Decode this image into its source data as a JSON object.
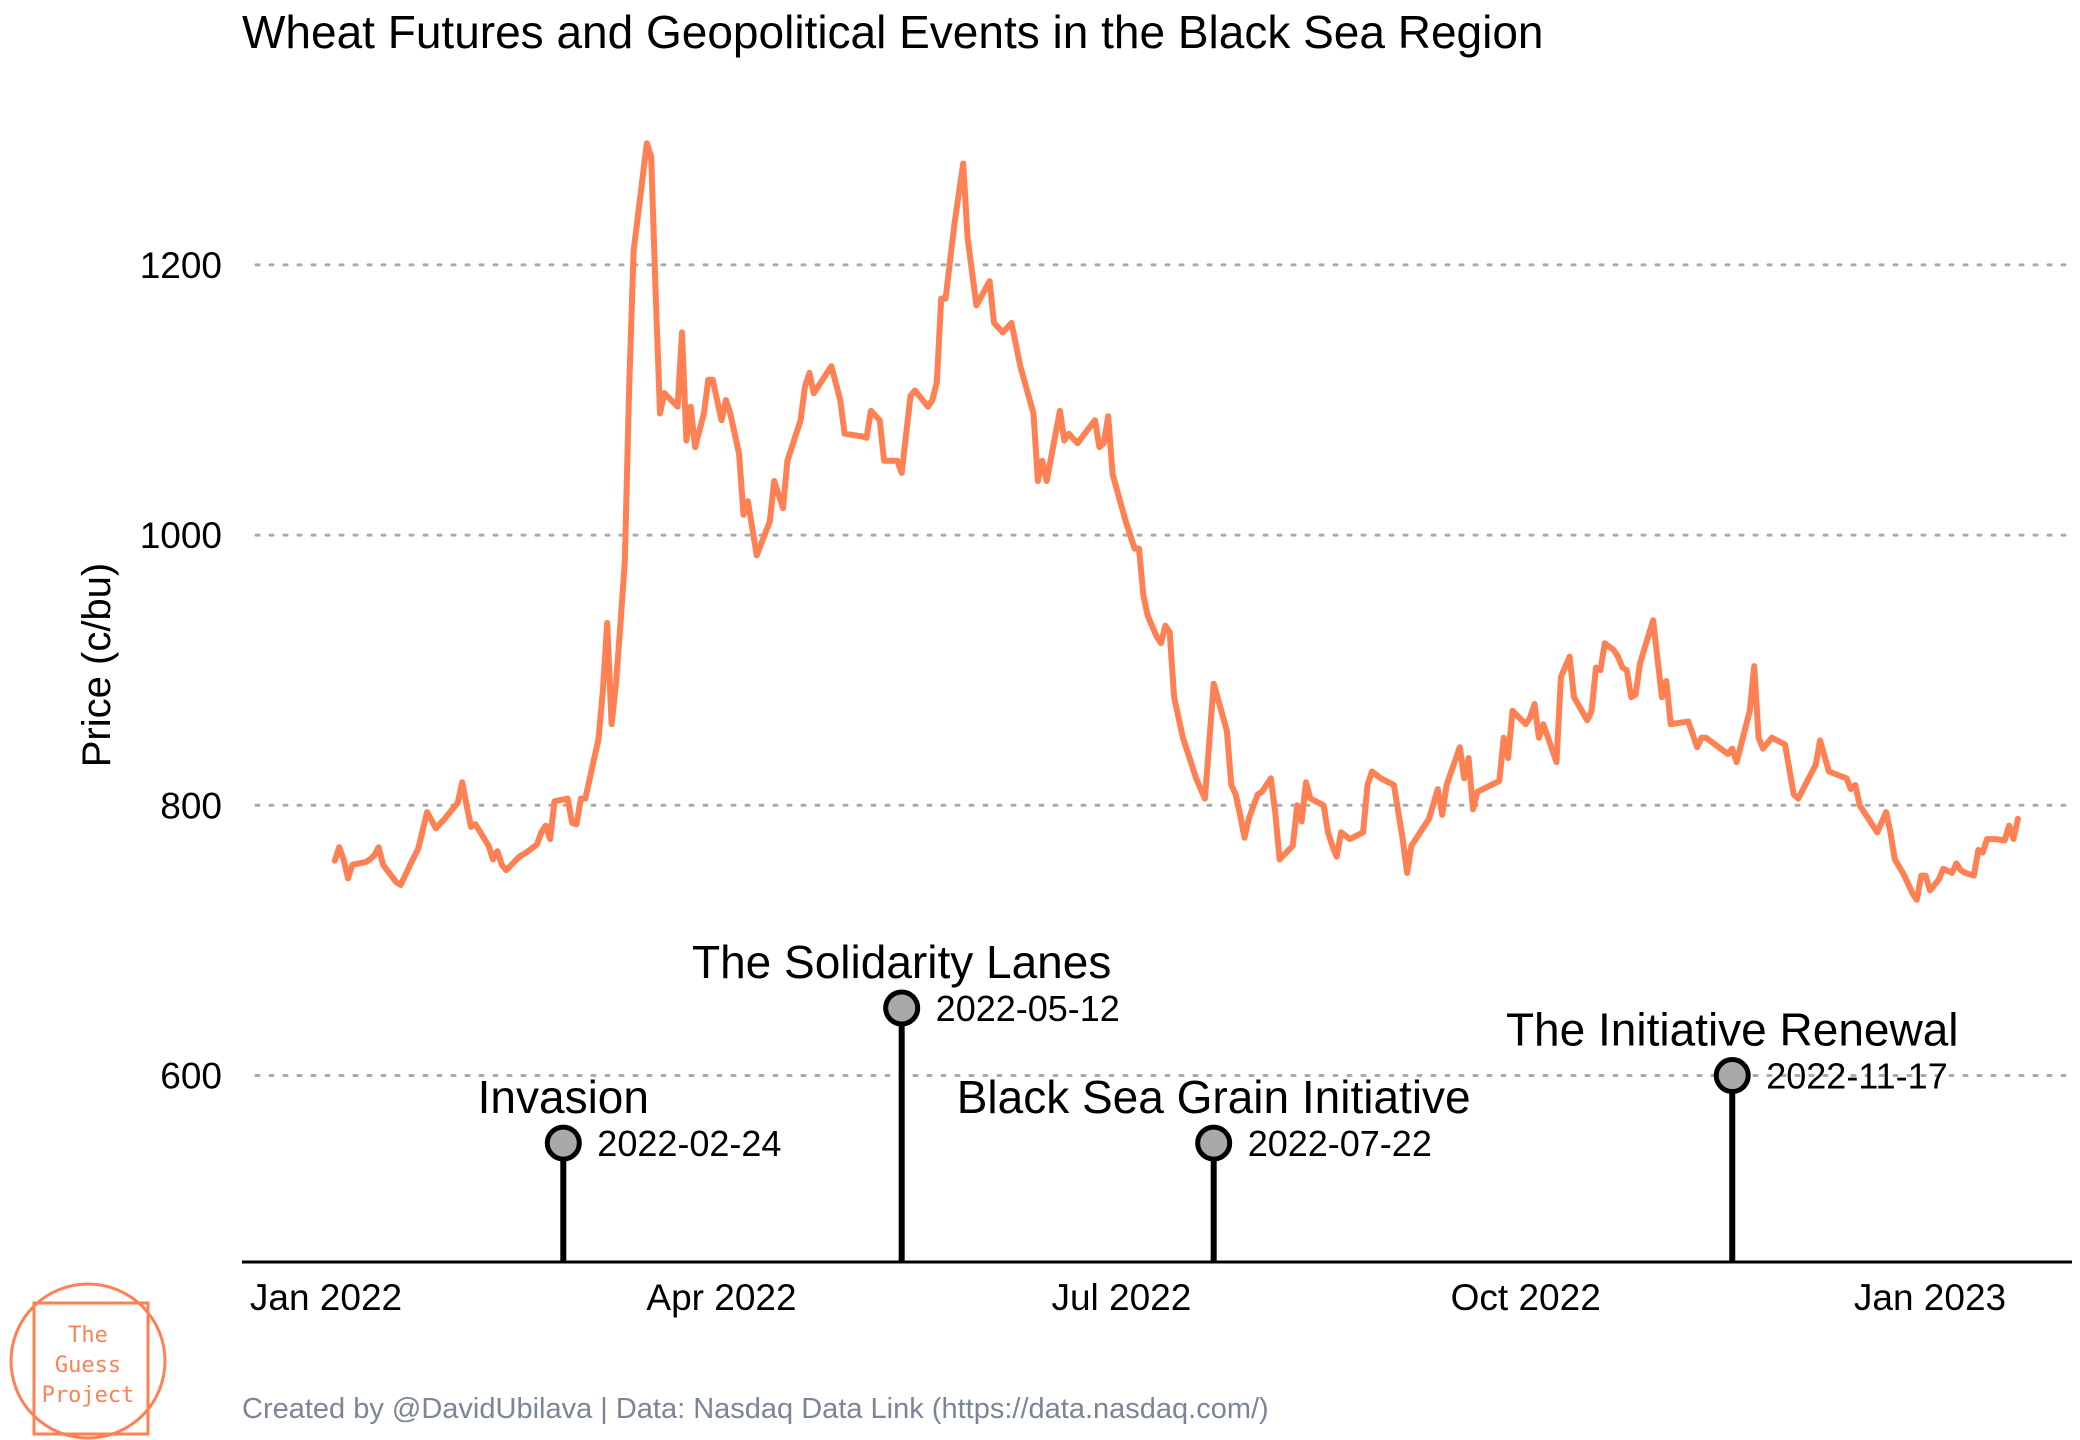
{
  "colors": {
    "line": "#ff8052",
    "grid": "#aaaaaa",
    "marker_fill": "#a9a9a9",
    "caption": "#7a8696",
    "logo": "#ff8052"
  },
  "caption": "Created by @DavidUbilava | Data: Nasdaq Data Link (https://data.nasdaq.com/)",
  "logo": {
    "lines": [
      "The",
      "Guess",
      "Project"
    ]
  },
  "chart_data": {
    "type": "line",
    "title": "Wheat Futures and Geopolitical Events in the Black Sea Region",
    "xlabel": "",
    "ylabel": "Price (c/bu)",
    "xlim": [
      "2022-01-01",
      "2023-01-16"
    ],
    "ylim": [
      462,
      1322
    ],
    "yticks": [
      600,
      800,
      1000,
      1200
    ],
    "xticks": [
      {
        "date": "2022-01-01",
        "label": "Jan 2022"
      },
      {
        "date": "2022-04-01",
        "label": "Apr 2022"
      },
      {
        "date": "2022-07-01",
        "label": "Jul 2022"
      },
      {
        "date": "2022-10-01",
        "label": "Oct 2022"
      },
      {
        "date": "2023-01-01",
        "label": "Jan 2023"
      }
    ],
    "grid": "horizontal dotted",
    "series": [
      {
        "values": [
          [
            "2022-01-03",
            759
          ],
          [
            "2022-01-04",
            769
          ],
          [
            "2022-01-05",
            760
          ],
          [
            "2022-01-06",
            746
          ],
          [
            "2022-01-07",
            756
          ],
          [
            "2022-01-10",
            758
          ],
          [
            "2022-01-11",
            760
          ],
          [
            "2022-01-12",
            763
          ],
          [
            "2022-01-13",
            769
          ],
          [
            "2022-01-14",
            756
          ],
          [
            "2022-01-17",
            743
          ],
          [
            "2022-01-18",
            741
          ],
          [
            "2022-01-20",
            755
          ],
          [
            "2022-01-22",
            768
          ],
          [
            "2022-01-24",
            795
          ],
          [
            "2022-01-26",
            783
          ],
          [
            "2022-01-28",
            790
          ],
          [
            "2022-01-31",
            802
          ],
          [
            "2022-02-01",
            817
          ],
          [
            "2022-02-02",
            800
          ],
          [
            "2022-02-03",
            784
          ],
          [
            "2022-02-04",
            786
          ],
          [
            "2022-02-07",
            770
          ],
          [
            "2022-02-08",
            760
          ],
          [
            "2022-02-09",
            766
          ],
          [
            "2022-02-10",
            756
          ],
          [
            "2022-02-11",
            752
          ],
          [
            "2022-02-14",
            762
          ],
          [
            "2022-02-16",
            766
          ],
          [
            "2022-02-18",
            771
          ],
          [
            "2022-02-19",
            780
          ],
          [
            "2022-02-20",
            785
          ],
          [
            "2022-02-21",
            775
          ],
          [
            "2022-02-22",
            803
          ],
          [
            "2022-02-25",
            805
          ],
          [
            "2022-02-26",
            787
          ],
          [
            "2022-02-27",
            786
          ],
          [
            "2022-02-28",
            805
          ],
          [
            "2022-03-01",
            805
          ],
          [
            "2022-03-04",
            849
          ],
          [
            "2022-03-05",
            885
          ],
          [
            "2022-03-06",
            935
          ],
          [
            "2022-03-07",
            860
          ],
          [
            "2022-03-08",
            890
          ],
          [
            "2022-03-09",
            934
          ],
          [
            "2022-03-10",
            980
          ],
          [
            "2022-03-11",
            1110
          ],
          [
            "2022-03-12",
            1210
          ],
          [
            "2022-03-15",
            1290
          ],
          [
            "2022-03-16",
            1280
          ],
          [
            "2022-03-17",
            1180
          ],
          [
            "2022-03-18",
            1090
          ],
          [
            "2022-03-19",
            1105
          ],
          [
            "2022-03-22",
            1095
          ],
          [
            "2022-03-23",
            1150
          ],
          [
            "2022-03-24",
            1070
          ],
          [
            "2022-03-25",
            1095
          ],
          [
            "2022-03-26",
            1065
          ],
          [
            "2022-03-28",
            1090
          ],
          [
            "2022-03-29",
            1115
          ],
          [
            "2022-03-30",
            1115
          ],
          [
            "2022-03-31",
            1100
          ],
          [
            "2022-04-01",
            1085
          ],
          [
            "2022-04-02",
            1100
          ],
          [
            "2022-04-03",
            1090
          ],
          [
            "2022-04-05",
            1060
          ],
          [
            "2022-04-06",
            1015
          ],
          [
            "2022-04-07",
            1025
          ],
          [
            "2022-04-09",
            985
          ],
          [
            "2022-04-12",
            1010
          ],
          [
            "2022-04-13",
            1040
          ],
          [
            "2022-04-15",
            1020
          ],
          [
            "2022-04-16",
            1055
          ],
          [
            "2022-04-19",
            1085
          ],
          [
            "2022-04-20",
            1110
          ],
          [
            "2022-04-21",
            1120
          ],
          [
            "2022-04-22",
            1105
          ],
          [
            "2022-04-26",
            1125
          ],
          [
            "2022-04-28",
            1100
          ],
          [
            "2022-04-29",
            1075
          ],
          [
            "2022-05-03",
            1073
          ],
          [
            "2022-05-04",
            1072
          ],
          [
            "2022-05-05",
            1092
          ],
          [
            "2022-05-07",
            1085
          ],
          [
            "2022-05-08",
            1055
          ],
          [
            "2022-05-11",
            1055
          ],
          [
            "2022-05-12",
            1046
          ],
          [
            "2022-05-14",
            1103
          ],
          [
            "2022-05-15",
            1107
          ],
          [
            "2022-05-18",
            1095
          ],
          [
            "2022-05-19",
            1100
          ],
          [
            "2022-05-20",
            1113
          ],
          [
            "2022-05-21",
            1175
          ],
          [
            "2022-05-22",
            1175
          ],
          [
            "2022-05-24",
            1230
          ],
          [
            "2022-05-26",
            1275
          ],
          [
            "2022-05-27",
            1220
          ],
          [
            "2022-05-29",
            1170
          ],
          [
            "2022-06-01",
            1188
          ],
          [
            "2022-06-02",
            1157
          ],
          [
            "2022-06-04",
            1150
          ],
          [
            "2022-06-06",
            1157
          ],
          [
            "2022-06-08",
            1125
          ],
          [
            "2022-06-11",
            1090
          ],
          [
            "2022-06-12",
            1040
          ],
          [
            "2022-06-13",
            1055
          ],
          [
            "2022-06-14",
            1040
          ],
          [
            "2022-06-17",
            1092
          ],
          [
            "2022-06-18",
            1070
          ],
          [
            "2022-06-19",
            1075
          ],
          [
            "2022-06-21",
            1068
          ],
          [
            "2022-06-25",
            1085
          ],
          [
            "2022-06-26",
            1065
          ],
          [
            "2022-06-27",
            1068
          ],
          [
            "2022-06-28",
            1088
          ],
          [
            "2022-06-29",
            1045
          ],
          [
            "2022-07-02",
            1010
          ],
          [
            "2022-07-04",
            990
          ],
          [
            "2022-07-05",
            990
          ],
          [
            "2022-07-06",
            955
          ],
          [
            "2022-07-07",
            940
          ],
          [
            "2022-07-09",
            925
          ],
          [
            "2022-07-10",
            920
          ],
          [
            "2022-07-11",
            933
          ],
          [
            "2022-07-12",
            928
          ],
          [
            "2022-07-13",
            880
          ],
          [
            "2022-07-15",
            850
          ],
          [
            "2022-07-18",
            820
          ],
          [
            "2022-07-20",
            805
          ],
          [
            "2022-07-22",
            890
          ],
          [
            "2022-07-25",
            855
          ],
          [
            "2022-07-26",
            815
          ],
          [
            "2022-07-27",
            808
          ],
          [
            "2022-07-28",
            793
          ],
          [
            "2022-07-29",
            776
          ],
          [
            "2022-07-30",
            790
          ],
          [
            "2022-08-01",
            808
          ],
          [
            "2022-08-02",
            810
          ],
          [
            "2022-08-04",
            820
          ],
          [
            "2022-08-05",
            795
          ],
          [
            "2022-08-06",
            760
          ],
          [
            "2022-08-09",
            770
          ],
          [
            "2022-08-10",
            800
          ],
          [
            "2022-08-11",
            788
          ],
          [
            "2022-08-12",
            817
          ],
          [
            "2022-08-13",
            805
          ],
          [
            "2022-08-16",
            800
          ],
          [
            "2022-08-17",
            780
          ],
          [
            "2022-08-18",
            770
          ],
          [
            "2022-08-19",
            762
          ],
          [
            "2022-08-20",
            780
          ],
          [
            "2022-08-22",
            775
          ],
          [
            "2022-08-25",
            780
          ],
          [
            "2022-08-26",
            815
          ],
          [
            "2022-08-27",
            825
          ],
          [
            "2022-08-29",
            820
          ],
          [
            "2022-09-01",
            815
          ],
          [
            "2022-09-02",
            795
          ],
          [
            "2022-09-03",
            775
          ],
          [
            "2022-09-04",
            750
          ],
          [
            "2022-09-05",
            770
          ],
          [
            "2022-09-09",
            790
          ],
          [
            "2022-09-11",
            812
          ],
          [
            "2022-09-12",
            793
          ],
          [
            "2022-09-13",
            815
          ],
          [
            "2022-09-16",
            843
          ],
          [
            "2022-09-17",
            820
          ],
          [
            "2022-09-18",
            835
          ],
          [
            "2022-09-19",
            797
          ],
          [
            "2022-09-20",
            810
          ],
          [
            "2022-09-25",
            818
          ],
          [
            "2022-09-26",
            850
          ],
          [
            "2022-09-27",
            835
          ],
          [
            "2022-09-28",
            870
          ],
          [
            "2022-10-01",
            860
          ],
          [
            "2022-10-02",
            865
          ],
          [
            "2022-10-03",
            875
          ],
          [
            "2022-10-04",
            850
          ],
          [
            "2022-10-05",
            860
          ],
          [
            "2022-10-08",
            832
          ],
          [
            "2022-10-09",
            895
          ],
          [
            "2022-10-11",
            910
          ],
          [
            "2022-10-12",
            880
          ],
          [
            "2022-10-15",
            863
          ],
          [
            "2022-10-16",
            870
          ],
          [
            "2022-10-17",
            902
          ],
          [
            "2022-10-18",
            900
          ],
          [
            "2022-10-19",
            920
          ],
          [
            "2022-10-21",
            915
          ],
          [
            "2022-10-22",
            910
          ],
          [
            "2022-10-23",
            902
          ],
          [
            "2022-10-24",
            900
          ],
          [
            "2022-10-25",
            880
          ],
          [
            "2022-10-26",
            882
          ],
          [
            "2022-10-27",
            905
          ],
          [
            "2022-10-30",
            937
          ],
          [
            "2022-11-01",
            880
          ],
          [
            "2022-11-02",
            892
          ],
          [
            "2022-11-03",
            860
          ],
          [
            "2022-11-07",
            862
          ],
          [
            "2022-11-09",
            843
          ],
          [
            "2022-11-10",
            850
          ],
          [
            "2022-11-11",
            850
          ],
          [
            "2022-11-16",
            838
          ],
          [
            "2022-11-17",
            842
          ],
          [
            "2022-11-18",
            832
          ],
          [
            "2022-11-21",
            870
          ],
          [
            "2022-11-22",
            903
          ],
          [
            "2022-11-23",
            850
          ],
          [
            "2022-11-24",
            842
          ],
          [
            "2022-11-26",
            850
          ],
          [
            "2022-11-29",
            845
          ],
          [
            "2022-12-01",
            808
          ],
          [
            "2022-12-02",
            805
          ],
          [
            "2022-12-06",
            830
          ],
          [
            "2022-12-07",
            848
          ],
          [
            "2022-12-09",
            825
          ],
          [
            "2022-12-13",
            820
          ],
          [
            "2022-12-14",
            812
          ],
          [
            "2022-12-15",
            815
          ],
          [
            "2022-12-16",
            800
          ],
          [
            "2022-12-18",
            790
          ],
          [
            "2022-12-20",
            780
          ],
          [
            "2022-12-22",
            795
          ],
          [
            "2022-12-23",
            780
          ],
          [
            "2022-12-24",
            760
          ],
          [
            "2022-12-26",
            749
          ],
          [
            "2022-12-28",
            735
          ],
          [
            "2022-12-29",
            730
          ],
          [
            "2022-12-30",
            748
          ],
          [
            "2022-12-31",
            748
          ],
          [
            "2023-01-01",
            737
          ],
          [
            "2023-01-03",
            745
          ],
          [
            "2023-01-04",
            753
          ],
          [
            "2023-01-06",
            750
          ],
          [
            "2023-01-07",
            757
          ],
          [
            "2023-01-08",
            752
          ],
          [
            "2023-01-09",
            750
          ],
          [
            "2023-01-11",
            748
          ],
          [
            "2023-01-12",
            767
          ],
          [
            "2023-01-13",
            765
          ],
          [
            "2023-01-14",
            775
          ],
          [
            "2023-01-16",
            775
          ],
          [
            "2023-01-18",
            774
          ],
          [
            "2023-01-19",
            785
          ],
          [
            "2023-01-20",
            775
          ],
          [
            "2023-01-21",
            790
          ]
        ]
      }
    ],
    "events": [
      {
        "name": "Invasion",
        "date": "2022-02-24",
        "date_label": "2022-02-24",
        "y": 550
      },
      {
        "name": "The Solidarity Lanes",
        "date": "2022-05-12",
        "date_label": "2022-05-12",
        "y": 650
      },
      {
        "name": "Black Sea Grain Initiative",
        "date": "2022-07-22",
        "date_label": "2022-07-22",
        "y": 550
      },
      {
        "name": "The Initiative Renewal",
        "date": "2022-11-17",
        "date_label": "2022-11-17",
        "y": 600
      }
    ]
  }
}
